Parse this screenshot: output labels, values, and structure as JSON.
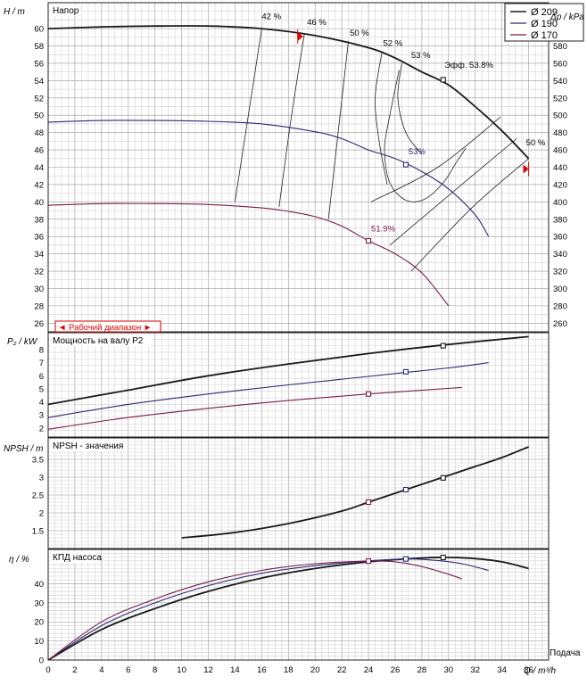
{
  "colors": {
    "d209": "#1a1a1a",
    "d190": "#2a2a7a",
    "d170": "#7a1a4a",
    "operating_range": "#e00000",
    "grid_minor": "#d2d2d2",
    "grid_major": "#9a9a9a"
  },
  "legend": [
    {
      "label": "Ø 209",
      "color_key": "d209"
    },
    {
      "label": "Ø 190",
      "color_key": "d190"
    },
    {
      "label": "Ø 170",
      "color_key": "d170"
    }
  ],
  "x_axis": {
    "label": "Q / m³/h",
    "extra_label": "Подача",
    "ticks": [
      "0",
      "2",
      "4",
      "6",
      "8",
      "10",
      "12",
      "14",
      "16",
      "18",
      "20",
      "22",
      "24",
      "26",
      "28",
      "30",
      "32",
      "34",
      "36"
    ]
  },
  "panels": {
    "head": {
      "title": "Напор",
      "ylabel": "H / m",
      "y2label": "Δp / kPa",
      "yticks": [
        "26",
        "28",
        "30",
        "32",
        "34",
        "36",
        "38",
        "40",
        "42",
        "44",
        "46",
        "48",
        "50",
        "52",
        "54",
        "56",
        "58",
        "60"
      ],
      "y2ticks": [
        "260",
        "280",
        "300",
        "320",
        "340",
        "360",
        "380",
        "400",
        "420",
        "440",
        "460",
        "480",
        "500",
        "520",
        "540",
        "560",
        "580",
        "600"
      ],
      "operating_range_label": "◄ Рабочий диапазон ►",
      "efficiency_labels": [
        "42 %",
        "46 %",
        "50 %",
        "52 %",
        "53 %",
        "Эфф.  53.8%",
        "50 %",
        "53%",
        "51.9%"
      ]
    },
    "power": {
      "title": "Мощность на валу P2",
      "ylabel": "P₂ / kW",
      "yticks": [
        "2",
        "3",
        "4",
        "5",
        "6",
        "7",
        "8"
      ]
    },
    "npsh": {
      "title": "NPSH - значения",
      "ylabel": "NPSH / m",
      "yticks": [
        "1.5",
        "2",
        "2.5",
        "3",
        "3.5"
      ]
    },
    "eff": {
      "title": "КПД насоса",
      "ylabel": "η / %",
      "yticks": [
        "0",
        "10",
        "20",
        "30",
        "40"
      ]
    }
  },
  "chart_data": [
    {
      "type": "line",
      "title": "Напор",
      "xlabel": "Q / m³/h",
      "ylabel": "H / m",
      "y2label": "Δp / kPa",
      "xlim": [
        0,
        37.5
      ],
      "ylim": [
        25,
        63
      ],
      "y2lim": [
        250,
        630
      ],
      "grid": true,
      "legend": "top-right",
      "series": [
        {
          "name": "Ø 209",
          "color_key": "d209",
          "points": [
            [
              0,
              60
            ],
            [
              4,
              60.2
            ],
            [
              8,
              60.3
            ],
            [
              12,
              60.3
            ],
            [
              16,
              60
            ],
            [
              20,
              59.2
            ],
            [
              24,
              57.8
            ],
            [
              26,
              56.6
            ],
            [
              28,
              55
            ],
            [
              30,
              53.5
            ],
            [
              32,
              51
            ],
            [
              34,
              48.2
            ],
            [
              36,
              45
            ]
          ]
        },
        {
          "name": "Ø 190",
          "color_key": "d190",
          "points": [
            [
              0,
              49.2
            ],
            [
              4,
              49.4
            ],
            [
              8,
              49.4
            ],
            [
              12,
              49.3
            ],
            [
              16,
              49
            ],
            [
              20,
              48.1
            ],
            [
              22,
              47.3
            ],
            [
              24,
              46
            ],
            [
              26,
              45
            ],
            [
              28,
              43.5
            ],
            [
              30,
              41.5
            ],
            [
              32,
              38.5
            ],
            [
              33,
              36
            ]
          ]
        },
        {
          "name": "Ø 170",
          "color_key": "d170",
          "points": [
            [
              0,
              39.6
            ],
            [
              4,
              39.8
            ],
            [
              8,
              39.8
            ],
            [
              12,
              39.7
            ],
            [
              16,
              39.3
            ],
            [
              18,
              38.9
            ],
            [
              20,
              38.3
            ],
            [
              22,
              37.2
            ],
            [
              24,
              35.5
            ],
            [
              26,
              34
            ],
            [
              28,
              31.8
            ],
            [
              30,
              28
            ]
          ]
        }
      ],
      "iso_efficiency": [
        {
          "label": "42 %",
          "points": [
            [
              16,
              60
            ],
            [
              15,
              50
            ],
            [
              14,
              40
            ]
          ]
        },
        {
          "label": "46 %",
          "points": [
            [
              19.2,
              59.4
            ],
            [
              18.2,
              49.6
            ],
            [
              17.3,
              39.4
            ]
          ]
        },
        {
          "label": "50 %",
          "points": [
            [
              22.5,
              58.6
            ],
            [
              21.8,
              49
            ],
            [
              21,
              38
            ]
          ]
        },
        {
          "label": "52 %",
          "points": [
            [
              25,
              57.2
            ],
            [
              24.5,
              52
            ],
            [
              24.8,
              47
            ],
            [
              25.4,
              42
            ]
          ]
        },
        {
          "label": "53 %",
          "points": [
            [
              26.5,
              56
            ],
            [
              26.2,
              52
            ],
            [
              26.8,
              48
            ],
            [
              28,
              45.5
            ]
          ]
        },
        {
          "label": "50 %",
          "points": [
            [
              33.9,
              49.8
            ],
            [
              29.2,
              44
            ],
            [
              24.2,
              40
            ]
          ]
        },
        {
          "label": "50 %",
          "points": [
            [
              35.1,
              47.3
            ],
            [
              30.6,
              41.5
            ],
            [
              25.6,
              35
            ]
          ]
        },
        {
          "label": "50 %",
          "points": [
            [
              36,
              45
            ],
            [
              31.8,
              39.4
            ],
            [
              27.2,
              32
            ]
          ]
        }
      ],
      "operating_points": [
        {
          "series": "Ø 209",
          "x": 29.6,
          "y": 54.1,
          "label": "Эфф.  53.8%"
        },
        {
          "series": "Ø 190",
          "x": 26.8,
          "y": 44.3,
          "label": "53%"
        },
        {
          "series": "Ø 170",
          "x": 24,
          "y": 35.5,
          "label": "51.9%"
        }
      ],
      "operating_range": {
        "q_min": 0,
        "q_max": 18.7
      }
    },
    {
      "type": "line",
      "title": "Мощность на валу P2",
      "xlabel": "Q / m³/h",
      "ylabel": "P₂ / kW",
      "xlim": [
        0,
        37.5
      ],
      "ylim": [
        1.3,
        9.3
      ],
      "grid": true,
      "series": [
        {
          "name": "Ø 209",
          "color_key": "d209",
          "points": [
            [
              0,
              3.8
            ],
            [
              6,
              4.9
            ],
            [
              12,
              6
            ],
            [
              18,
              6.9
            ],
            [
              24,
              7.7
            ],
            [
              30,
              8.4
            ],
            [
              36,
              9
            ]
          ]
        },
        {
          "name": "Ø 190",
          "color_key": "d190",
          "points": [
            [
              0,
              2.8
            ],
            [
              6,
              3.8
            ],
            [
              12,
              4.6
            ],
            [
              18,
              5.3
            ],
            [
              24,
              5.95
            ],
            [
              30,
              6.6
            ],
            [
              33,
              7
            ]
          ]
        },
        {
          "name": "Ø 170",
          "color_key": "d170",
          "points": [
            [
              0,
              1.9
            ],
            [
              6,
              2.8
            ],
            [
              12,
              3.5
            ],
            [
              18,
              4.1
            ],
            [
              24,
              4.6
            ],
            [
              31,
              5.1
            ]
          ]
        }
      ],
      "operating_points": [
        {
          "series": "Ø 209",
          "x": 29.6,
          "y": 8.3
        },
        {
          "series": "Ø 190",
          "x": 26.8,
          "y": 6.3
        },
        {
          "series": "Ø 170",
          "x": 24,
          "y": 4.6
        }
      ]
    },
    {
      "type": "line",
      "title": "NPSH - значения",
      "xlabel": "Q / m³/h",
      "ylabel": "NPSH / m",
      "xlim": [
        0,
        37.5
      ],
      "ylim": [
        1.0,
        4.1
      ],
      "grid": true,
      "series": [
        {
          "name": "Ø 209",
          "color_key": "d209",
          "points": [
            [
              10,
              1.3
            ],
            [
              14,
              1.45
            ],
            [
              18,
              1.7
            ],
            [
              22,
              2.05
            ],
            [
              24,
              2.3
            ],
            [
              26,
              2.55
            ],
            [
              28,
              2.8
            ],
            [
              30,
              3.05
            ],
            [
              32,
              3.3
            ],
            [
              34,
              3.55
            ],
            [
              36,
              3.85
            ]
          ]
        }
      ],
      "operating_points": [
        {
          "series": "Ø 209",
          "x": 29.6,
          "y": 2.98
        },
        {
          "series": "Ø 190",
          "x": 26.8,
          "y": 2.65
        },
        {
          "series": "Ø 170",
          "x": 24,
          "y": 2.3
        }
      ]
    },
    {
      "type": "line",
      "title": "КПД насоса",
      "xlabel": "Q / m³/h",
      "ylabel": "η / %",
      "xlim": [
        0,
        37.5
      ],
      "ylim": [
        0,
        58
      ],
      "grid": true,
      "series": [
        {
          "name": "Ø 209",
          "color_key": "d209",
          "points": [
            [
              0,
              0
            ],
            [
              4,
              16
            ],
            [
              8,
              27
            ],
            [
              12,
              36
            ],
            [
              16,
              43
            ],
            [
              20,
              48
            ],
            [
              24,
              51.5
            ],
            [
              28,
              53.5
            ],
            [
              30,
              53.8
            ],
            [
              32,
              53.2
            ],
            [
              34,
              51.5
            ],
            [
              36,
              48
            ]
          ]
        },
        {
          "name": "Ø 190",
          "color_key": "d190",
          "points": [
            [
              0,
              0
            ],
            [
              4,
              18
            ],
            [
              8,
              30
            ],
            [
              12,
              39
            ],
            [
              16,
              45.5
            ],
            [
              20,
              49.5
            ],
            [
              24,
              52
            ],
            [
              27,
              53
            ],
            [
              29,
              52.3
            ],
            [
              31,
              50.5
            ],
            [
              33,
              47
            ]
          ]
        },
        {
          "name": "Ø 170",
          "color_key": "d170",
          "points": [
            [
              0,
              0
            ],
            [
              4,
              20
            ],
            [
              8,
              32
            ],
            [
              12,
              41
            ],
            [
              16,
              47
            ],
            [
              20,
              50.5
            ],
            [
              24,
              51.9
            ],
            [
              26,
              51.5
            ],
            [
              28,
              49
            ],
            [
              30,
              45
            ],
            [
              31,
              42.5
            ]
          ]
        }
      ],
      "operating_points": [
        {
          "series": "Ø 209",
          "x": 29.6,
          "y": 53.8
        },
        {
          "series": "Ø 190",
          "x": 26.8,
          "y": 53
        },
        {
          "series": "Ø 170",
          "x": 24,
          "y": 51.9
        }
      ]
    }
  ]
}
